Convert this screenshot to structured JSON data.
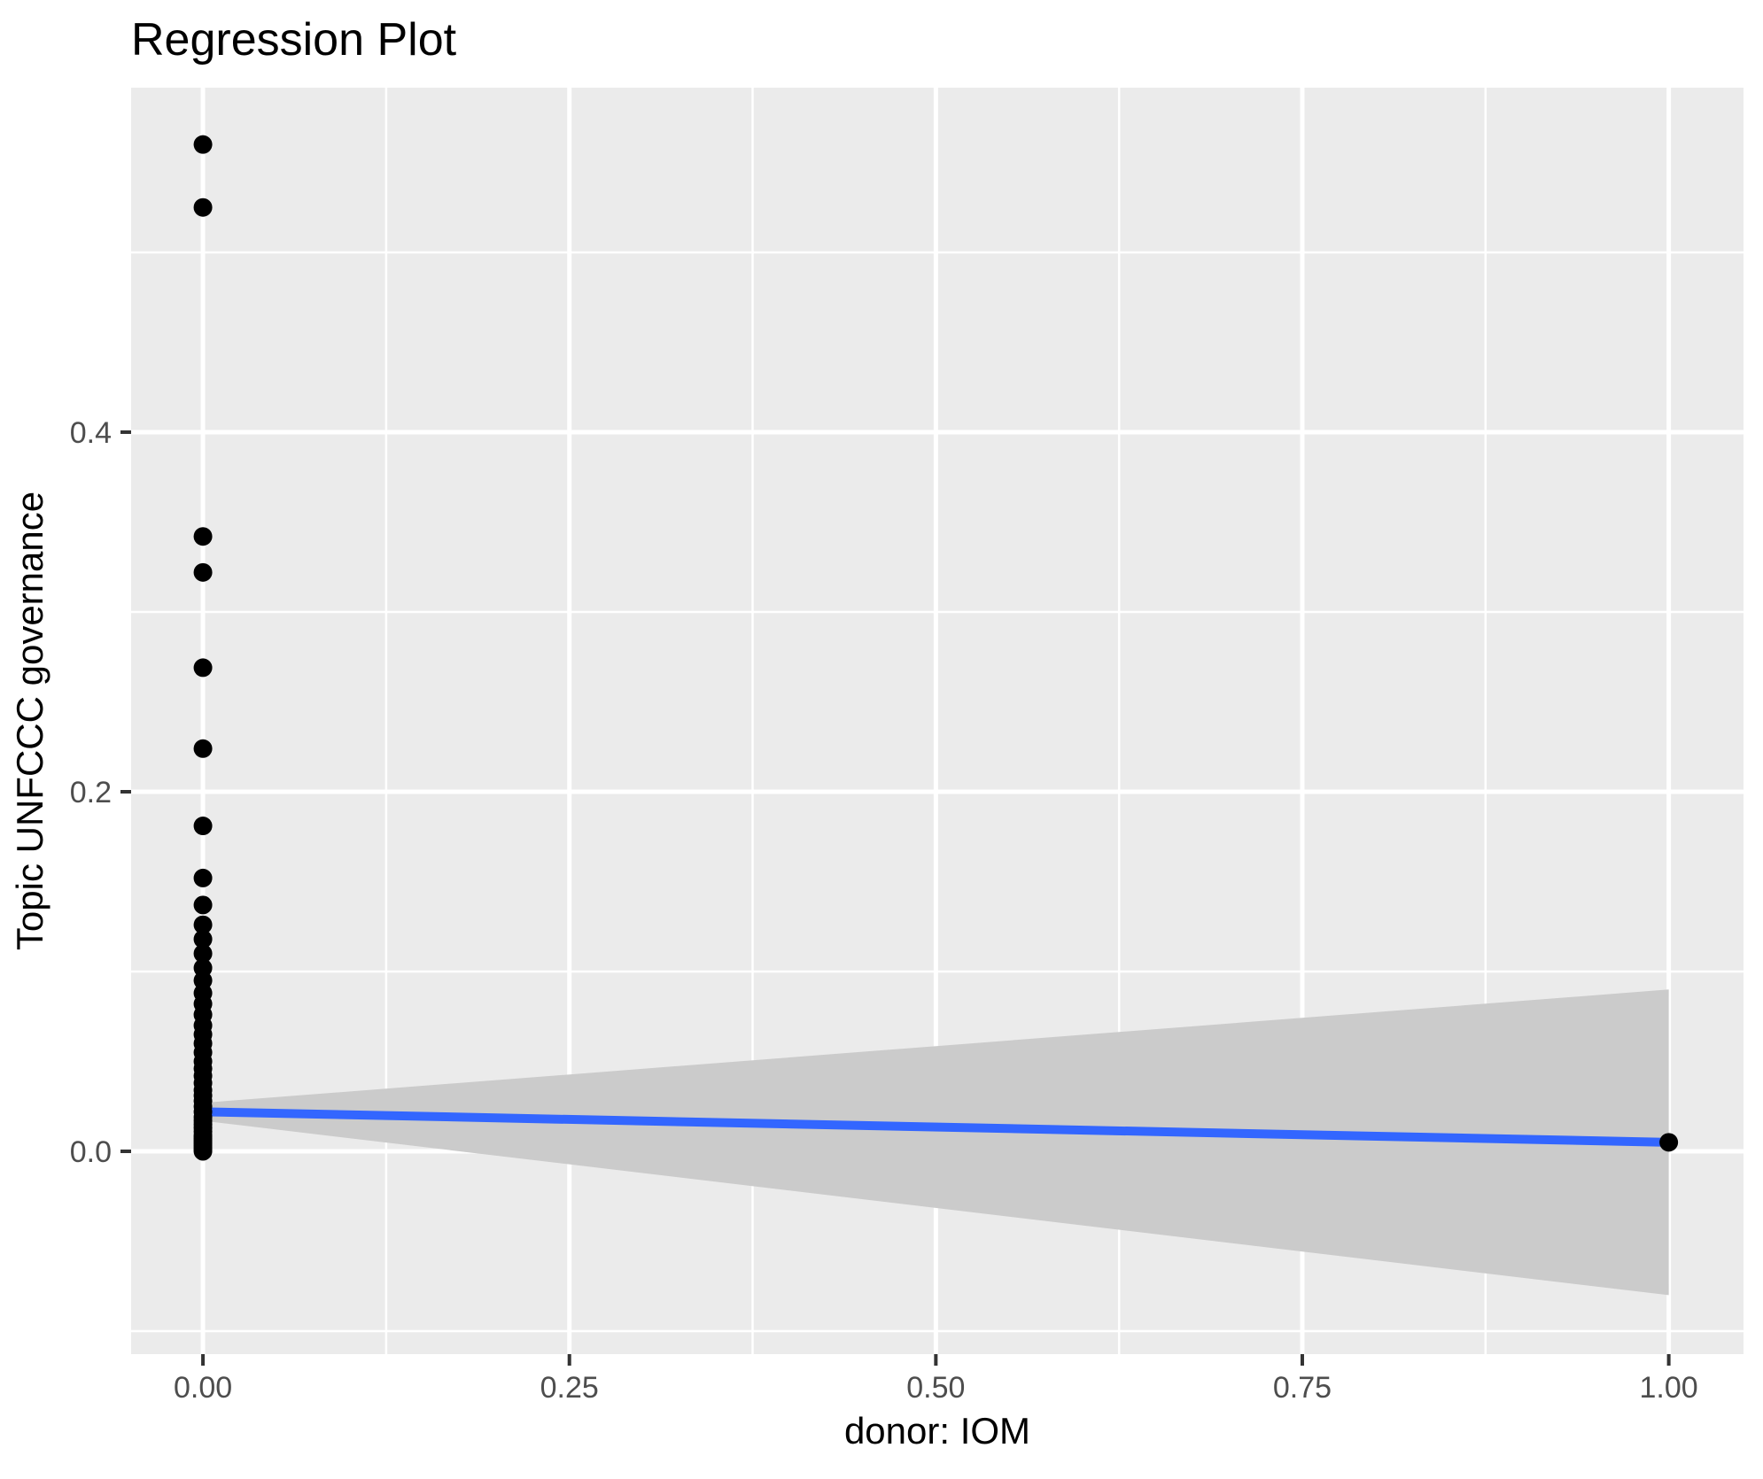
{
  "title": "Regression Plot",
  "x_axis": {
    "label": "donor: IOM",
    "tick_labels": [
      "0.00",
      "0.25",
      "0.50",
      "0.75",
      "1.00"
    ],
    "tick_values": [
      0,
      0.25,
      0.5,
      0.75,
      1.0
    ],
    "minor_values": [
      0.125,
      0.375,
      0.625,
      0.875
    ]
  },
  "y_axis": {
    "label": "Topic UNFCCC governance",
    "tick_labels": [
      "0.0",
      "0.2",
      "0.4"
    ],
    "tick_values": [
      0,
      0.2,
      0.4
    ],
    "minor_values": [
      -0.1,
      0.1,
      0.3,
      0.5
    ]
  },
  "colors": {
    "panel_bg": "#EBEBEB",
    "grid": "#FFFFFF",
    "point": "#000000",
    "regression_line": "#3366FF",
    "confidence_band": "#CBCBCB",
    "tick_text": "#4D4D4D",
    "tick_mark": "#333333",
    "axis_title": "#000000"
  },
  "chart_data": {
    "type": "scatter",
    "title": "Regression Plot",
    "xlabel": "donor: IOM",
    "ylabel": "Topic UNFCCC governance",
    "xlim": [
      -0.049,
      1.051
    ],
    "ylim": [
      -0.1128,
      0.5916
    ],
    "grid": "on",
    "legend": "none",
    "series": [
      {
        "name": "observations at donor=0",
        "x_value": 0,
        "y_values": [
          0.56,
          0.525,
          0.342,
          0.322,
          0.269,
          0.224,
          0.181,
          0.152,
          0.137,
          0.126,
          0.118,
          0.11,
          0.102,
          0.095,
          0.088,
          0.082,
          0.076,
          0.07,
          0.065,
          0.06,
          0.055,
          0.05,
          0.046,
          0.042,
          0.038,
          0.034,
          0.031,
          0.028,
          0.025,
          0.022,
          0.019,
          0.017,
          0.015,
          0.013,
          0.011,
          0.009,
          0.008,
          0.007,
          0.006,
          0.005,
          0.004,
          0.003,
          0.002,
          0.001,
          0.0
        ]
      },
      {
        "name": "observations at donor=1",
        "x_value": 1,
        "y_values": [
          0.005
        ]
      }
    ],
    "regression_line": {
      "x": [
        0,
        1
      ],
      "y": [
        0.022,
        0.005
      ]
    },
    "confidence_band": {
      "x": [
        0,
        1
      ],
      "upper": [
        0.027,
        0.09
      ],
      "lower": [
        0.017,
        -0.08
      ]
    },
    "point_radius_px": 10.5
  }
}
